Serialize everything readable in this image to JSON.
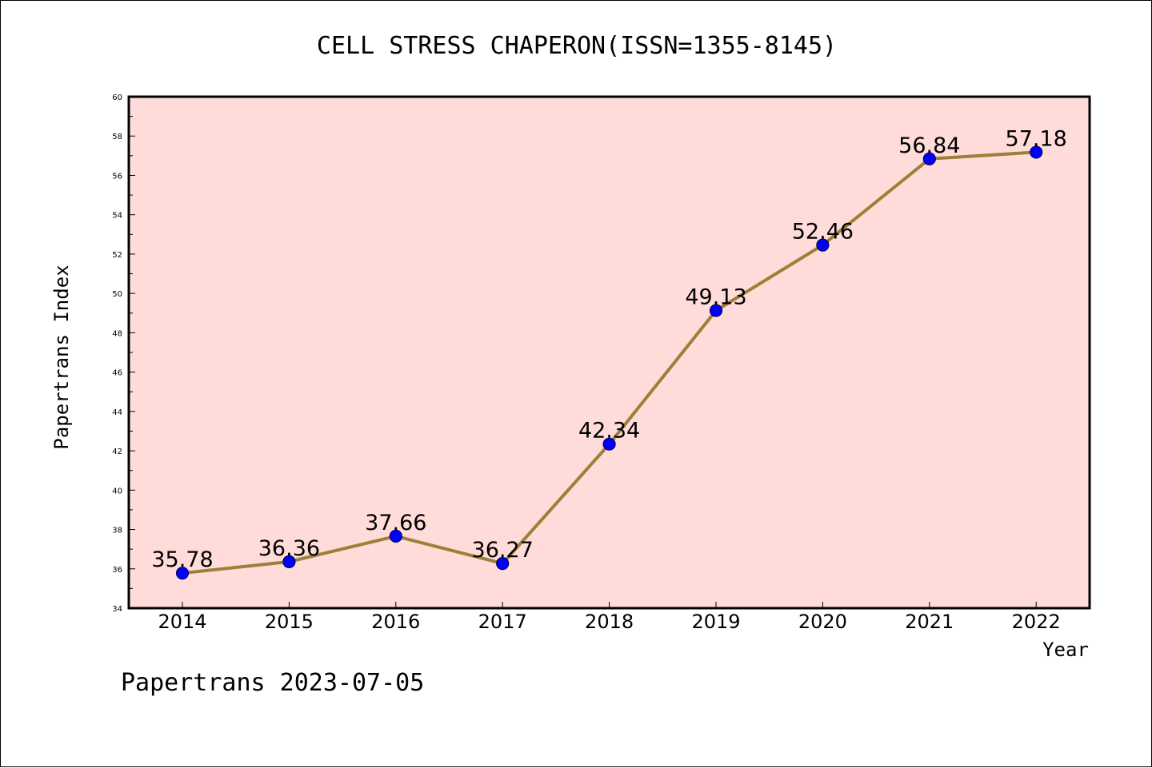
{
  "chart_data": {
    "type": "line",
    "title": "CELL STRESS CHAPERON(ISSN=1355-8145)",
    "xlabel": "Year",
    "ylabel": "Papertrans Index",
    "categories": [
      "2014",
      "2015",
      "2016",
      "2017",
      "2018",
      "2019",
      "2020",
      "2021",
      "2022"
    ],
    "series": [
      {
        "values": [
          35.78,
          36.36,
          37.66,
          36.27,
          42.34,
          49.13,
          52.46,
          56.84,
          57.18
        ],
        "labels": [
          "35.78",
          "36.36",
          "37.66",
          "36.27",
          "42.34",
          "49.13",
          "52.46",
          "56.84",
          "57.18"
        ]
      }
    ],
    "ylim": [
      34,
      60
    ],
    "yticks": [
      34,
      36,
      38,
      40,
      42,
      44,
      46,
      48,
      50,
      52,
      54,
      56,
      58,
      60
    ],
    "grid": false,
    "colors": {
      "plot_background": "#ffdcd9",
      "line": "#9a8038",
      "marker": "#0000ff",
      "marker_edge": "#00005a"
    }
  },
  "footer": {
    "text": "Papertrans 2023-07-05"
  }
}
